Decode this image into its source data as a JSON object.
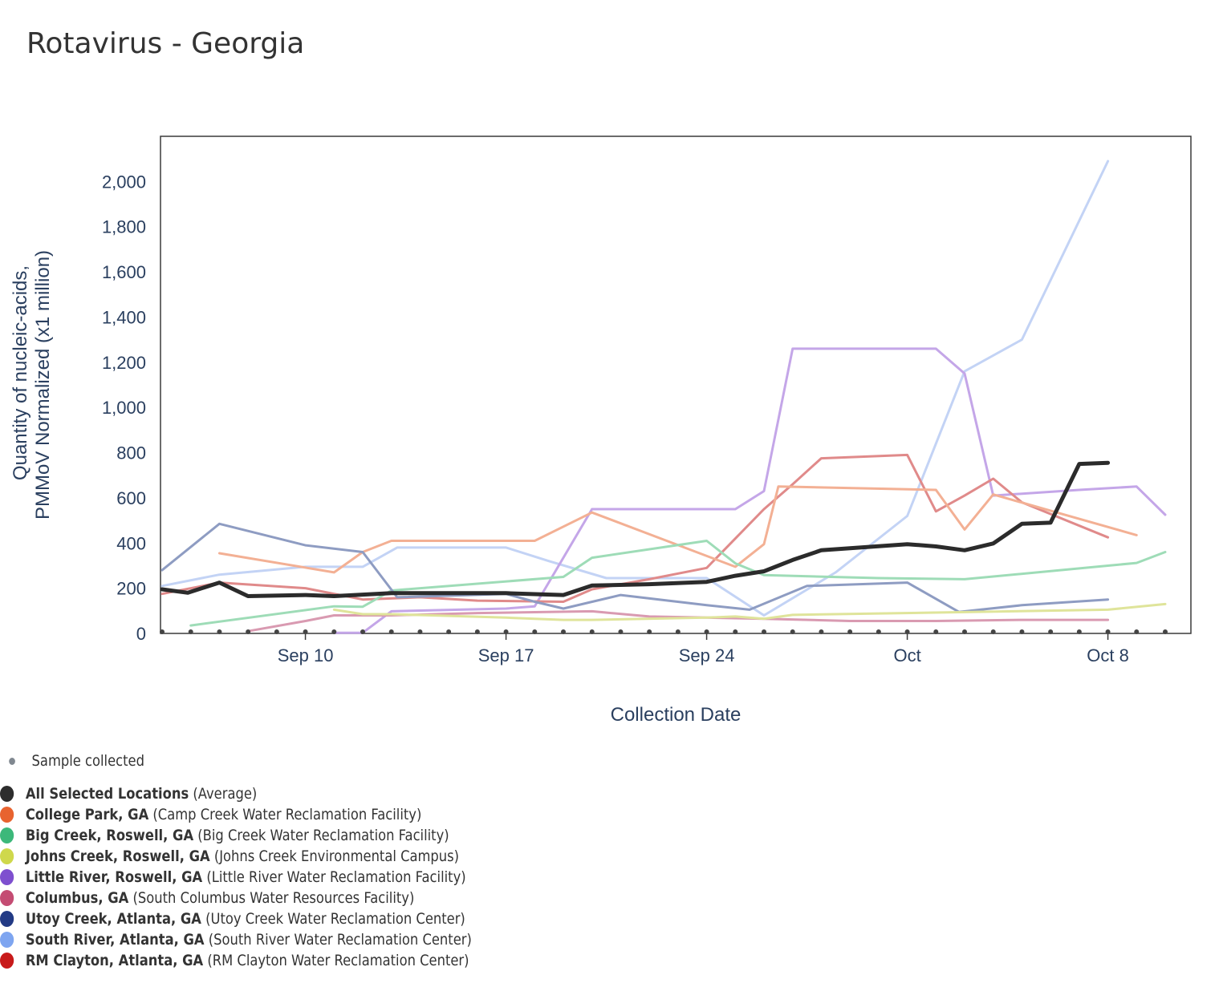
{
  "title": "Rotavirus - Georgia",
  "chart_data": {
    "type": "line",
    "xlabel": "Collection Date",
    "ylabel_line1": "Quantity of nucleic-acids,",
    "ylabel_line2": "PMMoV Normalized (x1 million)",
    "x_ticks": [
      {
        "label": "Sep 10",
        "day": 10
      },
      {
        "label": "Sep 17",
        "day": 17
      },
      {
        "label": "Sep 24",
        "day": 24
      },
      {
        "label": "Oct",
        "day": 31
      },
      {
        "label": "Oct 8",
        "day": 38
      }
    ],
    "x_range_days": [
      5,
      41
    ],
    "y_ticks": [
      {
        "label": "0",
        "value": 0
      },
      {
        "label": "200",
        "value": 200
      },
      {
        "label": "400",
        "value": 400
      },
      {
        "label": "600",
        "value": 600
      },
      {
        "label": "800",
        "value": 800
      },
      {
        "label": "1,000",
        "value": 1000
      },
      {
        "label": "1,200",
        "value": 1200
      },
      {
        "label": "1,400",
        "value": 1400
      },
      {
        "label": "1,600",
        "value": 1600
      },
      {
        "label": "1,800",
        "value": 1800
      },
      {
        "label": "2,000",
        "value": 2000
      }
    ],
    "ylim": [
      0,
      2200
    ],
    "sample_days": [
      5,
      6,
      7,
      8,
      9,
      10,
      11,
      12,
      13,
      14,
      15,
      16,
      17,
      18,
      19,
      20,
      21,
      22,
      23,
      24,
      25,
      26,
      27,
      28,
      29,
      30,
      31,
      32,
      33,
      34,
      35,
      36,
      37,
      38,
      39,
      40
    ],
    "series": [
      {
        "name": "South River, Atlanta, GA",
        "color": "#c3d3f5",
        "width": 3,
        "points": [
          [
            5,
            210
          ],
          [
            7,
            260
          ],
          [
            10,
            295
          ],
          [
            12,
            295
          ],
          [
            13.2,
            380
          ],
          [
            17,
            380
          ],
          [
            18.5,
            320
          ],
          [
            20.5,
            245
          ],
          [
            24,
            245
          ],
          [
            26,
            80
          ],
          [
            28.5,
            270
          ],
          [
            31,
            520
          ],
          [
            33,
            1160
          ],
          [
            35,
            1300
          ],
          [
            38,
            2090
          ]
        ]
      },
      {
        "name": "Little River, Roswell, GA",
        "color": "#c4a6e8",
        "width": 3,
        "points": [
          [
            11,
            3
          ],
          [
            12,
            3
          ],
          [
            13,
            98
          ],
          [
            17,
            110
          ],
          [
            18,
            120
          ],
          [
            20,
            550
          ],
          [
            25,
            550
          ],
          [
            26,
            630
          ],
          [
            27,
            1260
          ],
          [
            32,
            1260
          ],
          [
            33,
            1150
          ],
          [
            34,
            610
          ],
          [
            37,
            635
          ],
          [
            39,
            650
          ],
          [
            40,
            525
          ]
        ]
      },
      {
        "name": "RM Clayton, Atlanta, GA",
        "color": "#e08a8a",
        "width": 3,
        "points": [
          [
            5,
            175
          ],
          [
            7,
            225
          ],
          [
            10,
            200
          ],
          [
            12,
            150
          ],
          [
            14,
            160
          ],
          [
            16,
            145
          ],
          [
            19,
            140
          ],
          [
            20,
            195
          ],
          [
            22,
            240
          ],
          [
            24,
            290
          ],
          [
            26,
            550
          ],
          [
            27,
            660
          ],
          [
            28,
            775
          ],
          [
            31,
            790
          ],
          [
            32,
            540
          ],
          [
            33,
            610
          ],
          [
            34,
            685
          ],
          [
            35,
            580
          ],
          [
            38,
            425
          ]
        ]
      },
      {
        "name": "College Park, GA",
        "color": "#f3b094",
        "width": 3,
        "points": [
          [
            7,
            355
          ],
          [
            11,
            270
          ],
          [
            12,
            360
          ],
          [
            13,
            410
          ],
          [
            18,
            410
          ],
          [
            20,
            535
          ],
          [
            25,
            295
          ],
          [
            26,
            395
          ],
          [
            26.5,
            650
          ],
          [
            32,
            635
          ],
          [
            33,
            460
          ],
          [
            34,
            615
          ],
          [
            39,
            435
          ]
        ]
      },
      {
        "name": "Big Creek, Roswell, GA",
        "color": "#9edcb7",
        "width": 3,
        "points": [
          [
            6,
            35
          ],
          [
            11,
            120
          ],
          [
            12,
            118
          ],
          [
            13,
            190
          ],
          [
            19,
            250
          ],
          [
            20,
            335
          ],
          [
            24,
            410
          ],
          [
            25,
            310
          ],
          [
            26,
            258
          ],
          [
            30,
            245
          ],
          [
            33,
            240
          ],
          [
            38,
            300
          ],
          [
            39,
            312
          ],
          [
            40,
            360
          ]
        ]
      },
      {
        "name": "Utoy Creek, Atlanta, GA",
        "color": "#8e9cc2",
        "width": 3,
        "points": [
          [
            5,
            280
          ],
          [
            7,
            485
          ],
          [
            10,
            390
          ],
          [
            12,
            360
          ],
          [
            13.2,
            160
          ],
          [
            17,
            175
          ],
          [
            18,
            140
          ],
          [
            19,
            110
          ],
          [
            21,
            170
          ],
          [
            24,
            125
          ],
          [
            25.5,
            105
          ],
          [
            27.5,
            210
          ],
          [
            31,
            225
          ],
          [
            32.8,
            95
          ],
          [
            35,
            125
          ],
          [
            38,
            150
          ]
        ]
      },
      {
        "name": "Columbus, GA",
        "color": "#d99ab1",
        "width": 3,
        "points": [
          [
            8,
            10
          ],
          [
            10,
            55
          ],
          [
            11,
            80
          ],
          [
            13,
            80
          ],
          [
            16,
            90
          ],
          [
            20,
            98
          ],
          [
            22,
            75
          ],
          [
            24,
            70
          ],
          [
            26,
            65
          ],
          [
            29,
            55
          ],
          [
            32,
            55
          ],
          [
            35,
            60
          ],
          [
            38,
            60
          ]
        ]
      },
      {
        "name": "Johns Creek, Roswell, GA",
        "color": "#dfe49a",
        "width": 3,
        "points": [
          [
            11,
            105
          ],
          [
            12,
            85
          ],
          [
            13,
            85
          ],
          [
            17,
            70
          ],
          [
            18,
            65
          ],
          [
            19,
            60
          ],
          [
            20,
            60
          ],
          [
            24,
            70
          ],
          [
            25,
            75
          ],
          [
            26,
            65
          ],
          [
            27,
            82
          ],
          [
            38,
            105
          ],
          [
            40,
            130
          ]
        ]
      },
      {
        "name": "All Selected Locations",
        "color": "#2b2b2b",
        "width": 5,
        "points": [
          [
            5,
            195
          ],
          [
            5.9,
            180
          ],
          [
            7,
            225
          ],
          [
            8,
            165
          ],
          [
            10,
            170
          ],
          [
            11,
            165
          ],
          [
            13,
            178
          ],
          [
            17,
            178
          ],
          [
            18,
            174
          ],
          [
            19,
            170
          ],
          [
            20,
            212
          ],
          [
            22,
            218
          ],
          [
            24,
            228
          ],
          [
            25,
            255
          ],
          [
            26,
            275
          ],
          [
            27,
            325
          ],
          [
            28,
            368
          ],
          [
            31,
            395
          ],
          [
            32,
            385
          ],
          [
            33,
            368
          ],
          [
            34,
            398
          ],
          [
            35,
            485
          ],
          [
            36,
            490
          ],
          [
            37,
            750
          ],
          [
            38,
            755
          ]
        ]
      }
    ]
  },
  "legend": {
    "collected_label": "Sample collected",
    "items": [
      {
        "name": "All Selected Locations",
        "facility": "(Average)",
        "color": "#2d2d2d"
      },
      {
        "name": "College Park, GA",
        "facility": "(Camp Creek Water Reclamation Facility)",
        "color": "#e8632f"
      },
      {
        "name": "Big Creek, Roswell, GA",
        "facility": "(Big Creek Water Reclamation Facility)",
        "color": "#3cb87a"
      },
      {
        "name": "Johns Creek, Roswell, GA",
        "facility": "(Johns Creek Environmental Campus)",
        "color": "#cfd84c"
      },
      {
        "name": "Little River, Roswell, GA",
        "facility": "(Little River Water Reclamation Facility)",
        "color": "#7e4fcf"
      },
      {
        "name": "Columbus, GA",
        "facility": "(South Columbus Water Resources Facility)",
        "color": "#c44c73"
      },
      {
        "name": "Utoy Creek, Atlanta, GA",
        "facility": "(Utoy Creek Water Reclamation Center)",
        "color": "#223a85"
      },
      {
        "name": "South River, Atlanta, GA",
        "facility": "(South River Water Reclamation Center)",
        "color": "#7ea5f0"
      },
      {
        "name": "RM Clayton, Atlanta, GA",
        "facility": "(RM Clayton Water Reclamation Center)",
        "color": "#c81a1a"
      }
    ]
  }
}
